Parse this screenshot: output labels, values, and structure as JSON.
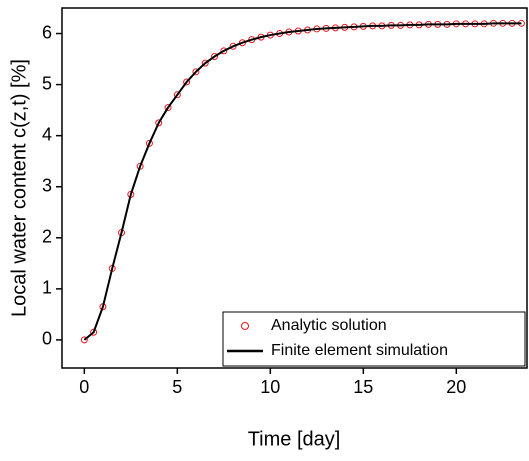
{
  "chart_data": {
    "type": "line",
    "xlabel": "Time [day]",
    "ylabel": "Local water content c(z,t) [%]",
    "x": [
      0,
      0.5,
      1,
      1.5,
      2,
      2.5,
      3,
      3.5,
      4,
      4.5,
      5,
      5.5,
      6,
      6.5,
      7,
      7.5,
      8,
      8.5,
      9,
      9.5,
      10,
      10.5,
      11,
      11.5,
      12,
      12.5,
      13,
      13.5,
      14,
      14.5,
      15,
      15.5,
      16,
      16.5,
      17,
      17.5,
      18,
      18.5,
      19,
      19.5,
      20,
      20.5,
      21,
      21.5,
      22,
      22.5,
      23,
      23.5
    ],
    "series": [
      {
        "name": "Analytic solution",
        "color": "#e8141c",
        "mode": "markers",
        "values": [
          0,
          0.15,
          0.65,
          1.4,
          2.1,
          2.85,
          3.4,
          3.85,
          4.25,
          4.55,
          4.8,
          5.05,
          5.25,
          5.42,
          5.55,
          5.66,
          5.75,
          5.82,
          5.88,
          5.93,
          5.97,
          6.0,
          6.03,
          6.05,
          6.07,
          6.09,
          6.1,
          6.11,
          6.12,
          6.13,
          6.14,
          6.15,
          6.15,
          6.16,
          6.16,
          6.17,
          6.17,
          6.18,
          6.18,
          6.18,
          6.19,
          6.19,
          6.19,
          6.19,
          6.2,
          6.2,
          6.2,
          6.2
        ]
      },
      {
        "name": "Finite element simulation",
        "color": "#000000",
        "mode": "lines",
        "values": [
          0,
          0.15,
          0.65,
          1.4,
          2.1,
          2.85,
          3.4,
          3.85,
          4.25,
          4.55,
          4.8,
          5.05,
          5.25,
          5.42,
          5.55,
          5.66,
          5.75,
          5.82,
          5.88,
          5.93,
          5.97,
          6.0,
          6.03,
          6.05,
          6.07,
          6.09,
          6.1,
          6.11,
          6.12,
          6.13,
          6.14,
          6.15,
          6.15,
          6.16,
          6.16,
          6.17,
          6.17,
          6.18,
          6.18,
          6.18,
          6.19,
          6.19,
          6.19,
          6.19,
          6.2,
          6.2,
          6.2,
          6.2
        ]
      }
    ],
    "xlim": [
      -1.2,
      23.8
    ],
    "xticks": [
      0,
      5,
      10,
      15,
      20
    ],
    "ylim": [
      -0.55,
      6.5
    ],
    "yticks": [
      0,
      1,
      2,
      3,
      4,
      5,
      6
    ],
    "legend": "lower right"
  }
}
